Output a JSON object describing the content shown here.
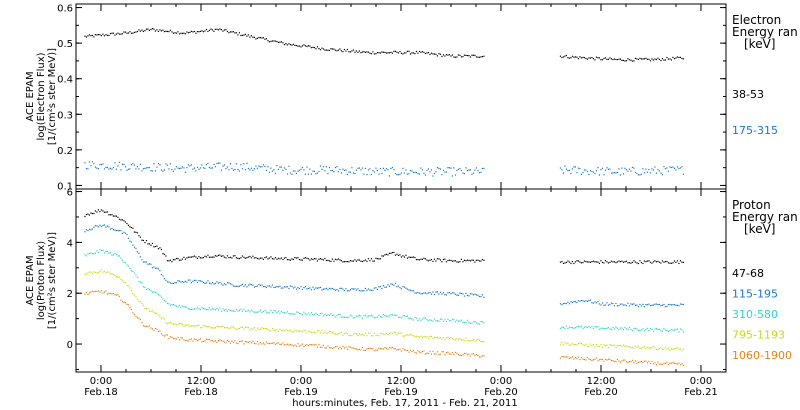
{
  "chart_data": [
    {
      "type": "scatter",
      "panel": "top",
      "ylabel_lines": [
        "ACE EPAM",
        "log(Electron Flux)",
        "[1/(cm²s ster MeV)]"
      ],
      "ylim": [
        0.09,
        0.61
      ],
      "yticks": [
        0.1,
        0.2,
        0.3,
        0.4,
        0.5,
        0.6
      ],
      "ytick_labels": [
        "0.1",
        "0.2",
        "0.3",
        "0.4",
        "0.5",
        "0.6"
      ],
      "side_title": [
        "Electron",
        "Energy ran",
        "[keV]"
      ],
      "gap_hours": [
        46,
        55
      ],
      "series": [
        {
          "name": "38-53",
          "color": "#000000",
          "x_hours": [
            -2,
            3,
            6,
            10,
            14,
            17,
            22,
            27,
            32,
            38,
            42,
            46,
            55,
            58,
            62,
            66,
            70
          ],
          "y": [
            0.52,
            0.53,
            0.54,
            0.53,
            0.54,
            0.525,
            0.5,
            0.485,
            0.475,
            0.475,
            0.465,
            0.465,
            0.465,
            0.46,
            0.455,
            0.455,
            0.46
          ]
        },
        {
          "name": "175-315",
          "color": "#1a78c8",
          "x_hours": [
            -2,
            4,
            10,
            16,
            22,
            28,
            34,
            40,
            46,
            55,
            62,
            70
          ],
          "y": [
            0.16,
            0.155,
            0.15,
            0.155,
            0.145,
            0.145,
            0.14,
            0.14,
            0.14,
            0.145,
            0.14,
            0.145
          ]
        }
      ]
    },
    {
      "type": "scatter",
      "panel": "bottom",
      "ylabel_lines": [
        "ACE EPAM",
        "log(Proton Flux)",
        "[1/(cm²s ster MeV)]"
      ],
      "ylim": [
        -1.1,
        6.1
      ],
      "yticks": [
        0,
        2,
        4,
        6
      ],
      "ytick_labels": [
        "0",
        "2",
        "4",
        "6"
      ],
      "side_title": [
        "Proton",
        "Energy ran",
        "[keV]"
      ],
      "gap_hours": [
        46,
        55
      ],
      "series": [
        {
          "name": "47-68",
          "color": "#000000",
          "x_hours": [
            -2,
            0,
            2,
            3,
            5,
            7,
            8,
            10,
            13,
            16,
            20,
            26,
            30,
            33,
            35,
            36,
            38,
            42,
            46,
            55,
            60,
            65,
            70
          ],
          "y": [
            5.1,
            5.3,
            5.0,
            4.8,
            4.1,
            3.8,
            3.3,
            3.4,
            3.5,
            3.45,
            3.4,
            3.35,
            3.3,
            3.35,
            3.6,
            3.5,
            3.35,
            3.3,
            3.3,
            3.25,
            3.25,
            3.25,
            3.25
          ]
        },
        {
          "name": "115-195",
          "color": "#1a78c8",
          "x_hours": [
            -2,
            0,
            2,
            3,
            5,
            7,
            8,
            10,
            13,
            16,
            20,
            26,
            30,
            33,
            35,
            36,
            38,
            42,
            46,
            55,
            58,
            60,
            65,
            70
          ],
          "y": [
            4.5,
            4.7,
            4.5,
            4.3,
            3.3,
            2.9,
            2.4,
            2.5,
            2.45,
            2.35,
            2.3,
            2.2,
            2.15,
            2.2,
            2.4,
            2.25,
            2.05,
            2.0,
            1.9,
            1.6,
            1.75,
            1.6,
            1.55,
            1.55
          ]
        },
        {
          "name": "310-580",
          "color": "#2fd6c8",
          "x_hours": [
            -2,
            0,
            2,
            3,
            5,
            7,
            8,
            10,
            13,
            16,
            20,
            26,
            30,
            33,
            35,
            38,
            42,
            46,
            55,
            60,
            65,
            70
          ],
          "y": [
            3.5,
            3.7,
            3.5,
            3.2,
            2.3,
            1.9,
            1.6,
            1.45,
            1.4,
            1.35,
            1.3,
            1.2,
            1.1,
            1.1,
            1.15,
            1.0,
            0.95,
            0.85,
            0.7,
            0.65,
            0.6,
            0.55
          ]
        },
        {
          "name": "795-1193",
          "color": "#c8dc14",
          "x_hours": [
            -2,
            0,
            2,
            3,
            5,
            7,
            8,
            10,
            13,
            16,
            20,
            26,
            30,
            33,
            35,
            38,
            42,
            46,
            55,
            60,
            65,
            70
          ],
          "y": [
            2.8,
            2.9,
            2.7,
            2.4,
            1.5,
            1.1,
            0.85,
            0.75,
            0.7,
            0.65,
            0.6,
            0.5,
            0.4,
            0.4,
            0.45,
            0.3,
            0.25,
            0.15,
            0.05,
            -0.05,
            -0.1,
            -0.2
          ]
        },
        {
          "name": "1060-1900",
          "color": "#e88214",
          "x_hours": [
            -2,
            0,
            2,
            3,
            5,
            7,
            8,
            10,
            13,
            16,
            20,
            26,
            30,
            33,
            35,
            38,
            42,
            46,
            55,
            60,
            65,
            70
          ],
          "y": [
            2.0,
            2.1,
            1.9,
            1.6,
            0.8,
            0.5,
            0.3,
            0.2,
            0.15,
            0.1,
            0.05,
            -0.05,
            -0.15,
            -0.2,
            -0.15,
            -0.3,
            -0.35,
            -0.45,
            -0.5,
            -0.6,
            -0.7,
            -0.8
          ]
        }
      ]
    }
  ],
  "x_axis": {
    "range_hours": [
      -3,
      75
    ],
    "ticks_hours": [
      0,
      12,
      24,
      36,
      48,
      60,
      72
    ],
    "tick_labels_time": [
      "0:00",
      "12:00",
      "0:00",
      "12:00",
      "0:00",
      "12:00",
      "0:00"
    ],
    "tick_labels_date": [
      "Feb.18",
      "Feb.18",
      "Feb.19",
      "Feb.19",
      "Feb.20",
      "Feb.20",
      "Feb.21"
    ],
    "minor_step_hours": 3,
    "xlabel": "hours:minutes, Feb. 17, 2011 - Feb. 21, 2011"
  }
}
